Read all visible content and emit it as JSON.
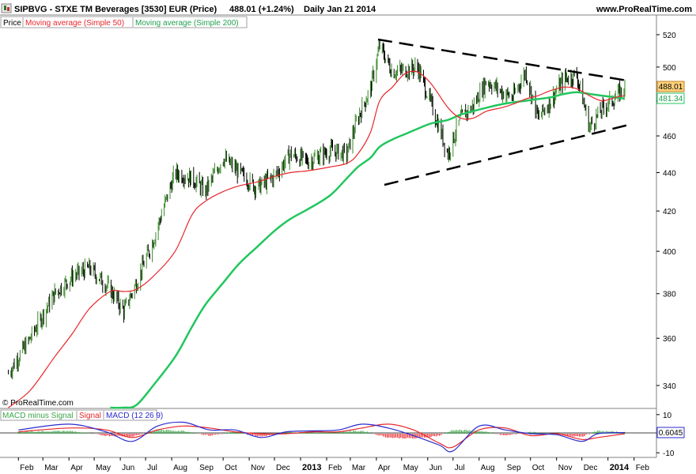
{
  "header": {
    "symbol": "SIPBVG - STXE TM Beverages [3530] EUR (Price)",
    "last_change": "488.01 (+1.24%)",
    "period_date": "Daily  Jan 21 2014",
    "website": "www.ProRealTime.com",
    "watermark": "© ProRealTime.com"
  },
  "price_panel": {
    "legend": [
      {
        "label": "Price",
        "color": "#000000"
      },
      {
        "label": "Moving average (Simple 50)",
        "color": "#e8262b"
      },
      {
        "label": "Moving average (Simple 200)",
        "color": "#22c65e"
      }
    ],
    "last_price_tag": "488.01",
    "ma200_tag": "481.34",
    "price_color_up": "#3a8a2a",
    "price_color_down": "#000000"
  },
  "macd_panel": {
    "legend": [
      {
        "label": "MACD minus Signal",
        "color": "#3aa64a"
      },
      {
        "label": "Signal",
        "color": "#e8262b"
      },
      {
        "label": "MACD (12 26 9)",
        "color": "#2a2ad0"
      }
    ],
    "value_tag": "0.6045",
    "ticks": [
      "10",
      "-10"
    ]
  },
  "chart_data": [
    {
      "type": "line",
      "title": "SIPBVG - STXE TM Beverages [3530] EUR (Price)",
      "x_labels": [
        "Feb",
        "Mar",
        "Apr",
        "May",
        "Jun",
        "Jul",
        "Aug",
        "Sep",
        "Oct",
        "Nov",
        "Dec",
        "2013",
        "Feb",
        "Mar",
        "Apr",
        "May",
        "Jun",
        "Jul",
        "Aug",
        "Sep",
        "Oct",
        "Nov",
        "Dec",
        "2014",
        "Feb"
      ],
      "y_ticks": [
        "520",
        "500",
        "480",
        "460",
        "440",
        "420",
        "400",
        "380",
        "360",
        "340"
      ],
      "ylim": [
        331,
        530
      ],
      "x": [
        "2012-01-20",
        "2012-02-15",
        "2012-03-15",
        "2012-04-05",
        "2012-04-25",
        "2012-05-20",
        "2012-06-05",
        "2012-06-20",
        "2012-07-10",
        "2012-08-05",
        "2012-08-25",
        "2012-09-10",
        "2012-10-01",
        "2012-10-20",
        "2012-11-10",
        "2012-12-01",
        "2012-12-20",
        "2013-01-10",
        "2013-02-05",
        "2013-02-25",
        "2013-03-10",
        "2013-03-25",
        "2013-04-05",
        "2013-04-20",
        "2013-05-05",
        "2013-05-20",
        "2013-06-05",
        "2013-06-25",
        "2013-07-10",
        "2013-07-25",
        "2013-08-10",
        "2013-08-28",
        "2013-09-10",
        "2013-09-25",
        "2013-10-10",
        "2013-10-25",
        "2013-11-10",
        "2013-11-25",
        "2013-12-10",
        "2013-12-25",
        "2014-01-10",
        "2014-01-21"
      ],
      "series": [
        {
          "name": "Price",
          "values": [
            345,
            360,
            380,
            388,
            392,
            382,
            372,
            385,
            405,
            440,
            437,
            430,
            448,
            440,
            432,
            438,
            450,
            446,
            452,
            450,
            470,
            487,
            513,
            497,
            498,
            500,
            478,
            450,
            470,
            477,
            492,
            485,
            482,
            497,
            470,
            480,
            493,
            495,
            465,
            475,
            482,
            488.01
          ]
        },
        {
          "name": "Moving average (Simple 50)",
          "values": [
            328,
            338,
            352,
            362,
            373,
            381,
            381,
            382,
            388,
            400,
            418,
            425,
            430,
            433,
            435,
            438,
            440,
            441,
            443,
            445,
            450,
            462,
            480,
            488,
            496,
            497,
            490,
            476,
            470,
            470,
            474,
            476,
            478,
            481,
            483,
            486,
            488,
            487,
            483,
            480,
            482,
            483
          ]
        },
        {
          "name": "Moving average (Simple 200)",
          "values": [
            null,
            null,
            null,
            null,
            null,
            320,
            325,
            332,
            340,
            352,
            365,
            375,
            385,
            394,
            402,
            410,
            416,
            421,
            428,
            437,
            443,
            448,
            454,
            458,
            461,
            464,
            467,
            469,
            472,
            474,
            476,
            478,
            479,
            480,
            481,
            482,
            484,
            485,
            484,
            483,
            482,
            481.34
          ]
        }
      ]
    },
    {
      "type": "bar",
      "title": "MACD (12 26 9)",
      "ylim": [
        -12,
        12
      ],
      "y_ticks": [
        "10",
        "-10"
      ],
      "x": [
        "2012-02-01",
        "2012-04-01",
        "2012-05-15",
        "2012-06-15",
        "2012-07-15",
        "2012-08-15",
        "2012-09-15",
        "2012-10-15",
        "2012-11-15",
        "2012-12-15",
        "2013-01-15",
        "2013-02-15",
        "2013-03-15",
        "2013-04-15",
        "2013-05-15",
        "2013-06-15",
        "2013-07-01",
        "2013-08-01",
        "2013-09-01",
        "2013-10-01",
        "2013-11-01",
        "2013-12-01",
        "2013-12-20",
        "2014-01-21"
      ],
      "series": [
        {
          "name": "MACD minus Signal",
          "values": [
            1,
            1.5,
            -1,
            -1.5,
            2,
            1.5,
            -1,
            1,
            -1.5,
            1,
            0.5,
            1,
            1.5,
            -2,
            -2.5,
            -1,
            2,
            1.5,
            -1,
            1,
            -0.5,
            -1.5,
            1.5,
            0.6045
          ]
        },
        {
          "name": "Signal",
          "values": [
            1,
            3,
            2,
            -2,
            2,
            4,
            3,
            1,
            0,
            0,
            1,
            1,
            3,
            5,
            2,
            -5,
            -7,
            2,
            3,
            -1,
            0,
            -3,
            -2,
            0
          ]
        },
        {
          "name": "MACD (12 26 9)",
          "values": [
            2,
            5,
            1,
            -4,
            4,
            6,
            2,
            2,
            -2,
            1,
            1.5,
            2,
            5,
            3,
            -1,
            -6,
            -9,
            4,
            2,
            0,
            -0.5,
            -4,
            0,
            0.6045
          ]
        }
      ]
    }
  ]
}
